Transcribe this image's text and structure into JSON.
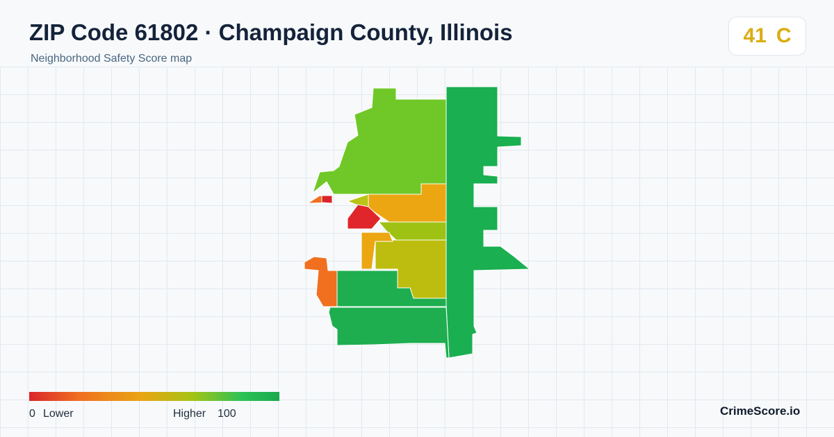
{
  "header": {
    "title": "ZIP Code 61802 · Champaign County, Illinois",
    "subtitle": "Neighborhood Safety Score map"
  },
  "score": {
    "value": "41",
    "grade": "C"
  },
  "legend": {
    "min": "0",
    "min_label": "Lower",
    "max_label": "Higher",
    "max": "100"
  },
  "brand": "CrimeScore.io"
}
